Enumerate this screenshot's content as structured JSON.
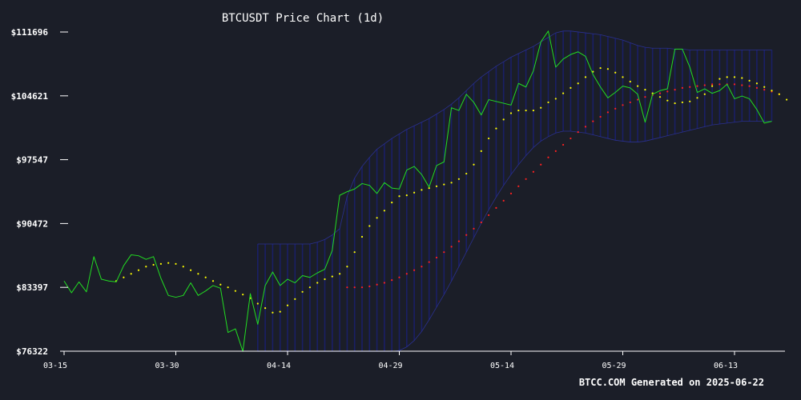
{
  "chart_data": {
    "type": "line",
    "title": "BTCUSDT Price Chart (1d)",
    "footer": "BTCC.COM Generated on 2025-06-22",
    "xlabel": "",
    "ylabel": "",
    "x_ticks": [
      "03-15",
      "03-30",
      "04-14",
      "04-29",
      "05-14",
      "05-29",
      "06-13"
    ],
    "y_ticks": [
      "$76322",
      "$83397",
      "$90472",
      "$97547",
      "$104621",
      "$111696"
    ],
    "ylim": [
      76322,
      111696
    ],
    "x_start": "2025-03-15",
    "grid": false,
    "colors": {
      "background": "#1b1e28",
      "price": "#22dd22",
      "ma_short": "#ffff00",
      "ma_long": "#ff2020",
      "band": "#1a1f66",
      "axis": "#ffffff"
    },
    "series": [
      {
        "name": "",
        "style": "line",
        "values": [
          84100,
          82800,
          84000,
          82900,
          86800,
          84300,
          84100,
          84000,
          85800,
          87000,
          86900,
          86500,
          86800,
          84400,
          82500,
          82300,
          82500,
          83900,
          82500,
          83000,
          83600,
          83300,
          78400,
          78800,
          76300,
          82700,
          79300,
          83600,
          85100,
          83600,
          84300,
          83900,
          84700,
          84500,
          85000,
          85400,
          87500,
          93600,
          94000,
          94300,
          94900,
          94700,
          93800,
          95000,
          94400,
          94300,
          96400,
          96800,
          95900,
          94500,
          96900,
          97300,
          103300,
          103000,
          104800,
          103900,
          102500,
          104200,
          104000,
          103800,
          103600,
          106000,
          105600,
          107400,
          110600,
          111800,
          107800,
          108700,
          109200,
          109500,
          109000,
          107000,
          105600,
          104400,
          105000,
          105700,
          105500,
          104800,
          101700,
          104800,
          105200,
          105400,
          109800,
          109800,
          107800,
          105000,
          105400,
          104900,
          105200,
          105900,
          104300,
          104600,
          104300,
          103100,
          101600,
          101800
        ]
      },
      {
        "name": "",
        "style": "dots",
        "start_index": 7,
        "values": [
          84100,
          84500,
          84900,
          85300,
          85700,
          85900,
          86000,
          86100,
          86000,
          85700,
          85300,
          84900,
          84500,
          84100,
          83700,
          83400,
          83000,
          82600,
          82200,
          81600,
          81100,
          80600,
          80700,
          81400,
          82100,
          82900,
          83400,
          83900,
          84300,
          84600,
          84900,
          85700,
          87300,
          89000,
          90200,
          91100,
          91900,
          92800,
          93500,
          93600,
          93900,
          94200,
          94400,
          94600,
          94800,
          95000,
          95400,
          96000,
          97000,
          98500,
          99900,
          101000,
          102000,
          102700,
          103000,
          103000,
          103000,
          103300,
          103900,
          104300,
          104900,
          105500,
          106000,
          106700,
          107300,
          107700,
          107600,
          107200,
          106700,
          106200,
          105700,
          105300,
          104900,
          104500,
          104100,
          103800,
          103900,
          104000,
          104400,
          104800,
          105700,
          106500,
          106700,
          106700,
          106600,
          106300,
          106000,
          105600,
          105200,
          104800,
          104200
        ]
      },
      {
        "name": "",
        "style": "dots",
        "start_index": 38,
        "values": [
          83400,
          83400,
          83400,
          83500,
          83700,
          83900,
          84200,
          84500,
          84900,
          85300,
          85700,
          86200,
          86700,
          87300,
          87900,
          88500,
          89200,
          89900,
          90600,
          91400,
          92200,
          93000,
          93800,
          94600,
          95400,
          96200,
          97000,
          97800,
          98500,
          99200,
          99900,
          100600,
          101200,
          101800,
          102300,
          102800,
          103200,
          103600,
          103900,
          104200,
          104500,
          104700,
          104900,
          105100,
          105300,
          105500,
          105600,
          105700,
          105800,
          105900,
          105900,
          105900,
          105900,
          105800,
          105700,
          105500,
          105300,
          105100,
          104800
        ]
      }
    ],
    "band": {
      "start_index": 26,
      "upper": [
        88200,
        88200,
        88200,
        88200,
        88200,
        88200,
        88200,
        88200,
        88400,
        88700,
        89200,
        89900,
        93500,
        95500,
        96800,
        97800,
        98700,
        99300,
        99900,
        100400,
        100900,
        101300,
        101700,
        102100,
        102600,
        103100,
        103700,
        104400,
        105200,
        106000,
        106700,
        107300,
        107900,
        108400,
        108900,
        109300,
        109700,
        110100,
        110600,
        111100,
        111600,
        111800,
        111800,
        111700,
        111600,
        111500,
        111400,
        111200,
        111000,
        110800,
        110500,
        110200,
        110000,
        109900,
        109900,
        109900,
        109800,
        109800,
        109700,
        109700,
        109700,
        109700,
        109700,
        109700,
        109700,
        109700,
        109700,
        109700,
        109700,
        109700
      ],
      "lower": [
        76300,
        76300,
        76300,
        76300,
        76300,
        76300,
        76300,
        76300,
        76300,
        76300,
        76300,
        76300,
        76300,
        76300,
        76300,
        76300,
        76300,
        76300,
        76300,
        76400,
        76800,
        77500,
        78500,
        79800,
        81200,
        82600,
        84100,
        85700,
        87300,
        88900,
        90500,
        92000,
        93400,
        94700,
        95900,
        97000,
        98000,
        98900,
        99600,
        100100,
        100500,
        100700,
        100700,
        100600,
        100500,
        100300,
        100100,
        99900,
        99700,
        99600,
        99500,
        99500,
        99600,
        99800,
        100000,
        100200,
        100400,
        100600,
        100800,
        101000,
        101200,
        101400,
        101500,
        101600,
        101700,
        101800,
        101800,
        101800,
        101800,
        101800
      ]
    }
  }
}
